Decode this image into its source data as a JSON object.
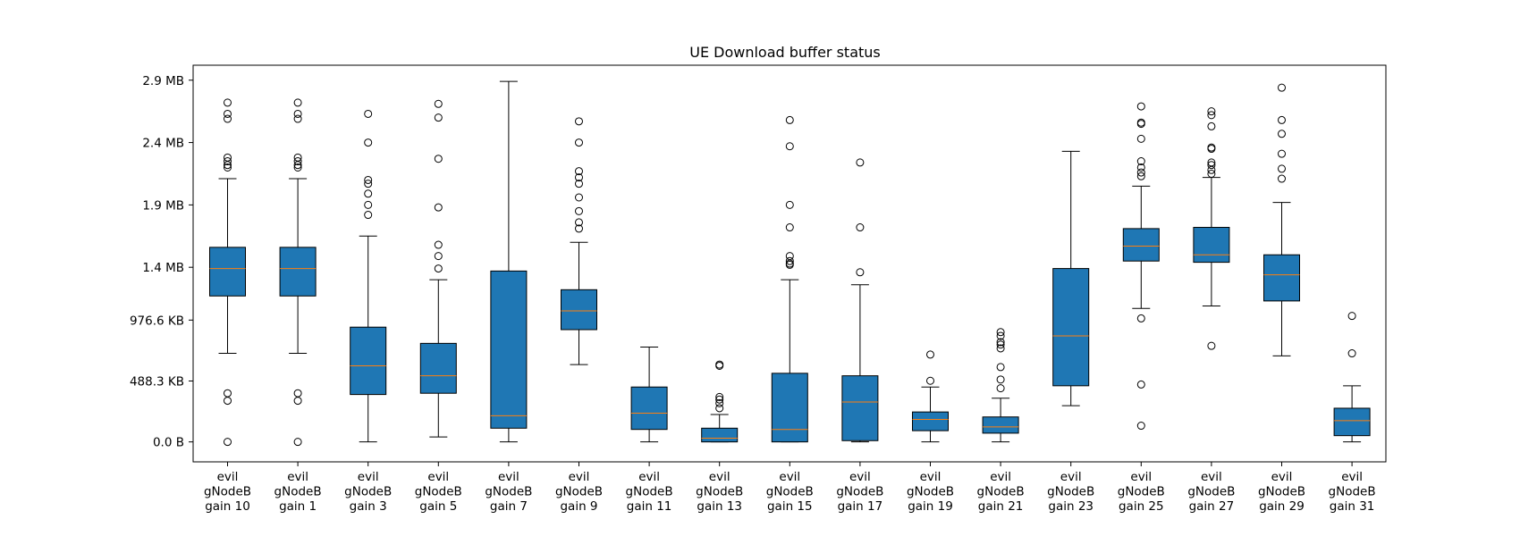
{
  "chart_data": {
    "type": "box",
    "title": "UE Download buffer status",
    "xlabel": "",
    "ylabel": "",
    "ylim": [
      -0.16,
      3.02
    ],
    "y_unit": "MB",
    "y_ticks": [
      {
        "value": 0.0,
        "label": "0.0 B"
      },
      {
        "value": 0.4883,
        "label": "488.3 KB"
      },
      {
        "value": 0.9766,
        "label": "976.6 KB"
      },
      {
        "value": 1.4,
        "label": "1.4 MB"
      },
      {
        "value": 1.9,
        "label": "1.9 MB"
      },
      {
        "value": 2.4,
        "label": "2.4 MB"
      },
      {
        "value": 2.9,
        "label": "2.9 MB"
      }
    ],
    "grid": false,
    "colors": {
      "box": "#1f77b4",
      "median": "#ff7f0e",
      "line": "#000000"
    },
    "boxes": [
      {
        "label": [
          "evil",
          "gNodeB",
          "gain 10"
        ],
        "whislo": 0.71,
        "q1": 1.17,
        "med": 1.39,
        "q3": 1.56,
        "whishi": 2.11,
        "fliers": [
          0.0,
          0.33,
          0.39,
          2.2,
          2.22,
          2.25,
          2.28,
          2.59,
          2.63,
          2.72
        ]
      },
      {
        "label": [
          "evil",
          "gNodeB",
          "gain 1"
        ],
        "whislo": 0.71,
        "q1": 1.17,
        "med": 1.39,
        "q3": 1.56,
        "whishi": 2.11,
        "fliers": [
          0.0,
          0.33,
          0.39,
          2.2,
          2.22,
          2.25,
          2.28,
          2.59,
          2.63,
          2.72
        ]
      },
      {
        "label": [
          "evil",
          "gNodeB",
          "gain 3"
        ],
        "whislo": 0.0,
        "q1": 0.38,
        "med": 0.61,
        "q3": 0.92,
        "whishi": 1.65,
        "fliers": [
          1.82,
          1.9,
          1.99,
          2.07,
          2.1,
          2.4,
          2.63
        ]
      },
      {
        "label": [
          "evil",
          "gNodeB",
          "gain 5"
        ],
        "whislo": 0.04,
        "q1": 0.39,
        "med": 0.53,
        "q3": 0.79,
        "whishi": 1.3,
        "fliers": [
          1.39,
          1.49,
          1.58,
          1.88,
          2.27,
          2.6,
          2.71
        ]
      },
      {
        "label": [
          "evil",
          "gNodeB",
          "gain 7"
        ],
        "whislo": 0.0,
        "q1": 0.11,
        "med": 0.21,
        "q3": 1.37,
        "whishi": 2.89,
        "fliers": []
      },
      {
        "label": [
          "evil",
          "gNodeB",
          "gain 9"
        ],
        "whislo": 0.62,
        "q1": 0.9,
        "med": 1.05,
        "q3": 1.22,
        "whishi": 1.6,
        "fliers": [
          1.71,
          1.76,
          1.85,
          1.96,
          2.07,
          2.12,
          2.17,
          2.4,
          2.57
        ]
      },
      {
        "label": [
          "evil",
          "gNodeB",
          "gain 11"
        ],
        "whislo": 0.0,
        "q1": 0.1,
        "med": 0.23,
        "q3": 0.44,
        "whishi": 0.76,
        "fliers": []
      },
      {
        "label": [
          "evil",
          "gNodeB",
          "gain 13"
        ],
        "whislo": 0.0,
        "q1": 0.0,
        "med": 0.03,
        "q3": 0.11,
        "whishi": 0.22,
        "fliers": [
          0.27,
          0.31,
          0.34,
          0.36,
          0.61,
          0.62
        ]
      },
      {
        "label": [
          "evil",
          "gNodeB",
          "gain 15"
        ],
        "whislo": 0.0,
        "q1": 0.0,
        "med": 0.1,
        "q3": 0.55,
        "whishi": 1.3,
        "fliers": [
          1.42,
          1.43,
          1.45,
          1.49,
          1.72,
          1.9,
          2.37,
          2.58
        ]
      },
      {
        "label": [
          "evil",
          "gNodeB",
          "gain 17"
        ],
        "whislo": 0.0,
        "q1": 0.01,
        "med": 0.32,
        "q3": 0.53,
        "whishi": 1.26,
        "fliers": [
          1.36,
          1.72,
          2.24
        ]
      },
      {
        "label": [
          "evil",
          "gNodeB",
          "gain 19"
        ],
        "whislo": 0.0,
        "q1": 0.09,
        "med": 0.18,
        "q3": 0.24,
        "whishi": 0.44,
        "fliers": [
          0.49,
          0.7
        ]
      },
      {
        "label": [
          "evil",
          "gNodeB",
          "gain 21"
        ],
        "whislo": 0.0,
        "q1": 0.07,
        "med": 0.12,
        "q3": 0.2,
        "whishi": 0.35,
        "fliers": [
          0.43,
          0.5,
          0.6,
          0.75,
          0.78,
          0.8,
          0.85,
          0.88
        ]
      },
      {
        "label": [
          "evil",
          "gNodeB",
          "gain 23"
        ],
        "whislo": 0.29,
        "q1": 0.45,
        "med": 0.85,
        "q3": 1.39,
        "whishi": 2.33,
        "fliers": []
      },
      {
        "label": [
          "evil",
          "gNodeB",
          "gain 25"
        ],
        "whislo": 1.07,
        "q1": 1.45,
        "med": 1.57,
        "q3": 1.71,
        "whishi": 2.05,
        "fliers": [
          0.13,
          0.46,
          0.99,
          2.13,
          2.16,
          2.2,
          2.25,
          2.43,
          2.55,
          2.56,
          2.69
        ]
      },
      {
        "label": [
          "evil",
          "gNodeB",
          "gain 27"
        ],
        "whislo": 1.09,
        "q1": 1.44,
        "med": 1.5,
        "q3": 1.72,
        "whishi": 2.12,
        "fliers": [
          0.77,
          2.15,
          2.18,
          2.22,
          2.24,
          2.35,
          2.36,
          2.53,
          2.62,
          2.65
        ]
      },
      {
        "label": [
          "evil",
          "gNodeB",
          "gain 29"
        ],
        "whislo": 0.69,
        "q1": 1.13,
        "med": 1.34,
        "q3": 1.5,
        "whishi": 1.92,
        "fliers": [
          2.11,
          2.19,
          2.31,
          2.47,
          2.58,
          2.84
        ]
      },
      {
        "label": [
          "evil",
          "gNodeB",
          "gain 31"
        ],
        "whislo": 0.0,
        "q1": 0.05,
        "med": 0.17,
        "q3": 0.27,
        "whishi": 0.45,
        "fliers": [
          0.71,
          1.01
        ]
      }
    ]
  }
}
